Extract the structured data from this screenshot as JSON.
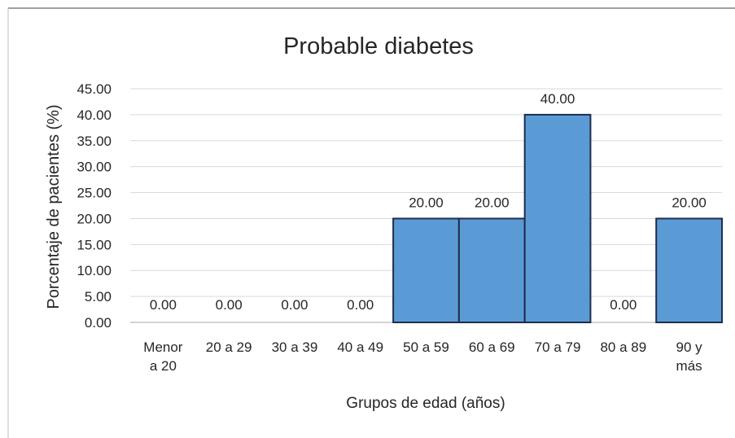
{
  "chart_data": {
    "type": "bar",
    "title": "Probable diabetes",
    "xlabel": "Grupos de edad (años)",
    "ylabel": "Porcentaje de pacientes (%)",
    "categories": [
      "Menor a 20",
      "20 a 29",
      "30 a 39",
      "40 a 49",
      "50 a 59",
      "60 a 69",
      "70 a 79",
      "80 a 89",
      "90 y más"
    ],
    "category_lines": [
      [
        "Menor",
        "a 20"
      ],
      [
        "20 a 29"
      ],
      [
        "30 a 39"
      ],
      [
        "40 a 49"
      ],
      [
        "50 a 59"
      ],
      [
        "60 a 69"
      ],
      [
        "70 a 79"
      ],
      [
        "80 a 89"
      ],
      [
        "90 y",
        "más"
      ]
    ],
    "values": [
      0.0,
      0.0,
      0.0,
      0.0,
      20.0,
      20.0,
      40.0,
      0.0,
      20.0
    ],
    "data_labels": [
      "0.00",
      "0.00",
      "0.00",
      "0.00",
      "20.00",
      "20.00",
      "40.00",
      "0.00",
      "20.00"
    ],
    "ylim": [
      0,
      45
    ],
    "yticks": [
      "0.00",
      "5.00",
      "10.00",
      "15.00",
      "20.00",
      "25.00",
      "30.00",
      "35.00",
      "40.00",
      "45.00"
    ],
    "grid": true,
    "bar_color": "#5b9bd5",
    "bar_edge_color": "#1f2d4d"
  }
}
